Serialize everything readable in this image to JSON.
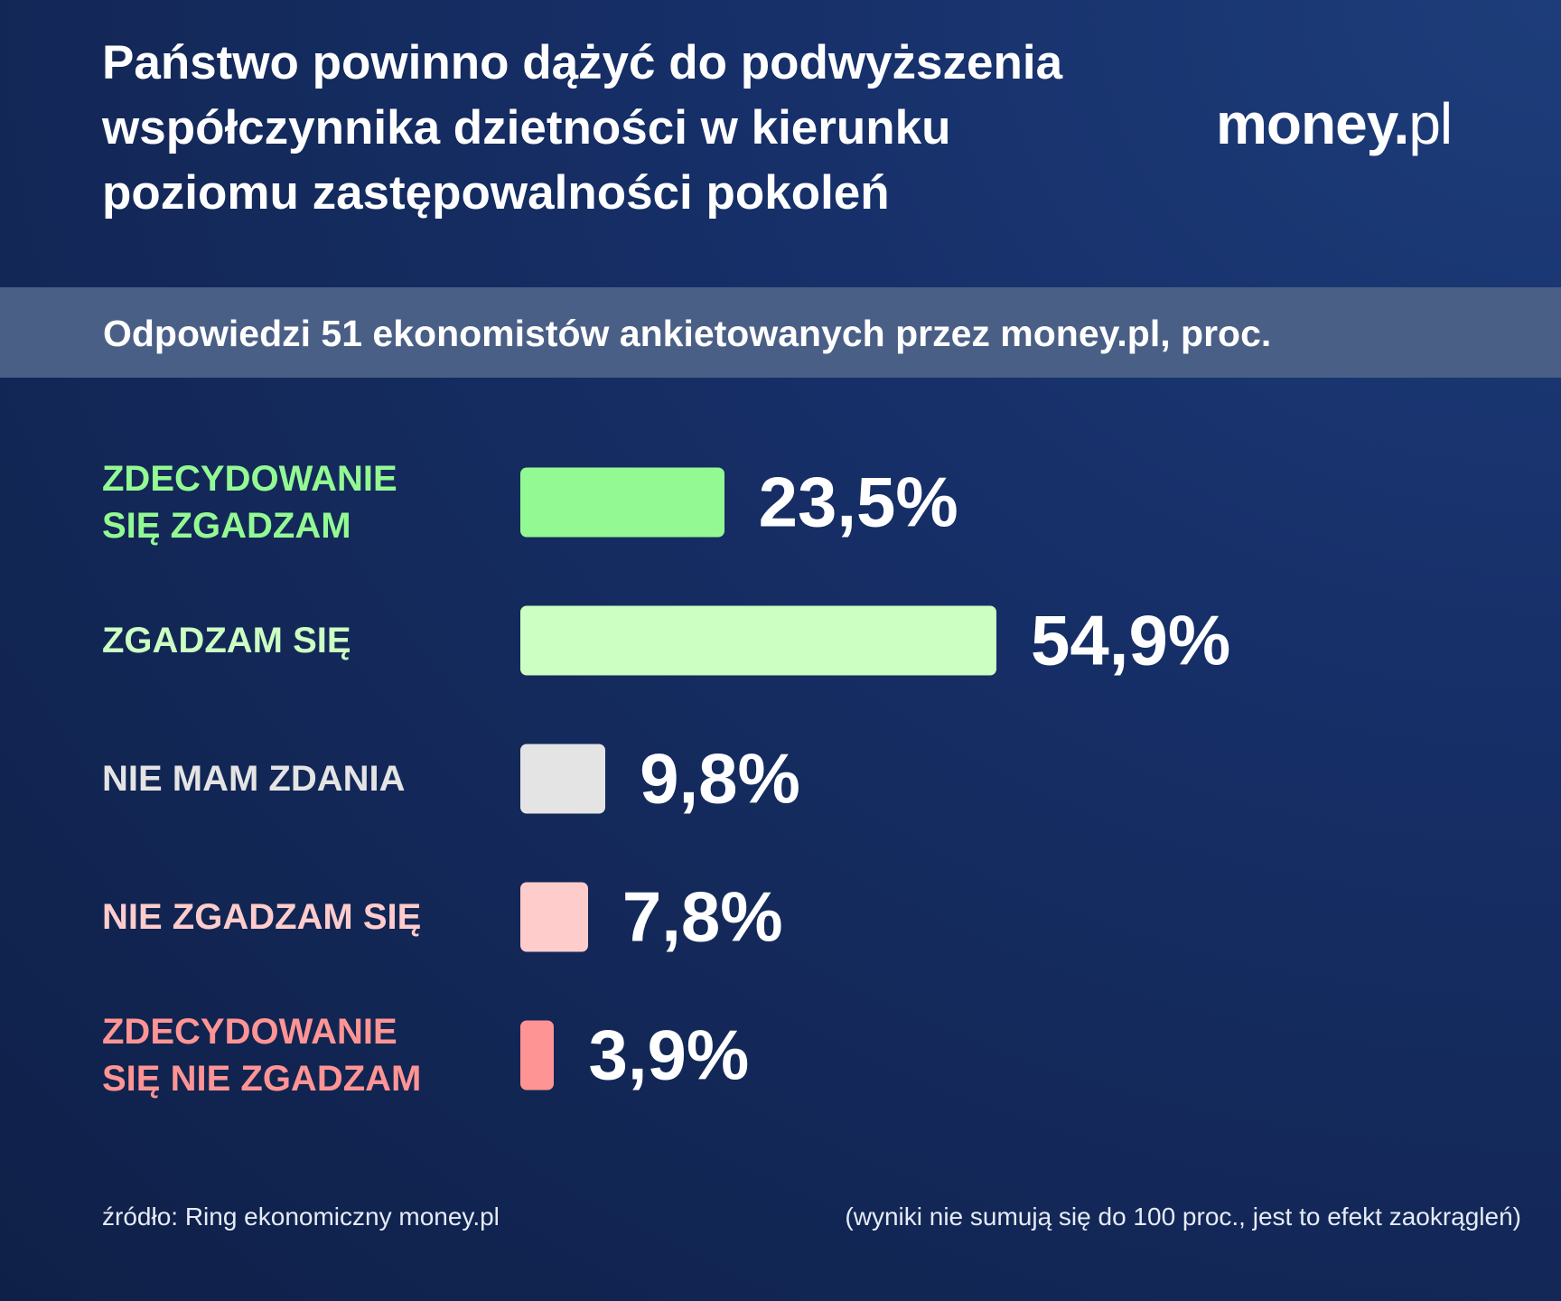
{
  "title_lines": [
    "Państwo powinno dążyć do podwyższenia",
    "współczynnika dzietności w kierunku",
    "poziomu zastępowalności pokoleń"
  ],
  "logo": {
    "main": "money.",
    "suffix": "pl"
  },
  "subtitle": "Odpowiedzi 51 ekonomistów ankietowanych przez money.pl, proc.",
  "chart_data": {
    "type": "bar",
    "orientation": "horizontal",
    "title": "Państwo powinno dążyć do podwyższenia współczynnika dzietności w kierunku poziomu zastępowalności pokoleń",
    "subtitle": "Odpowiedzi 51 ekonomistów ankietowanych przez money.pl, proc.",
    "unit": "%",
    "categories": [
      "ZDECYDOWANIE SIĘ ZGADZAM",
      "ZGADZAM SIĘ",
      "NIE MAM ZDANIA",
      "NIE ZGADZAM SIĘ",
      "ZDECYDOWANIE SIĘ NIE ZGADZAM"
    ],
    "category_lines": [
      [
        "ZDECYDOWANIE",
        "SIĘ ZGADZAM"
      ],
      [
        "ZGADZAM SIĘ"
      ],
      [
        "NIE MAM ZDANIA"
      ],
      [
        "NIE ZGADZAM SIĘ"
      ],
      [
        "ZDECYDOWANIE",
        "SIĘ NIE ZGADZAM"
      ]
    ],
    "values": [
      23.5,
      54.9,
      9.8,
      7.8,
      3.9
    ],
    "value_labels": [
      "23,5%",
      "54,9%",
      "9,8%",
      "7,8%",
      "3,9%"
    ],
    "bar_colors": [
      "#93fa93",
      "#ccffc2",
      "#e4e4e4",
      "#ffcccc",
      "#ff9494"
    ],
    "label_colors": [
      "#93fa93",
      "#ccffc2",
      "#e4e4e4",
      "#ffcccc",
      "#ff9494"
    ],
    "grid": false,
    "legend": "none"
  },
  "footer": {
    "source": "źródło: Ring ekonomiczny money.pl",
    "note": "(wyniki nie sumują się do 100 proc., jest to efekt zaokrągleń)"
  }
}
